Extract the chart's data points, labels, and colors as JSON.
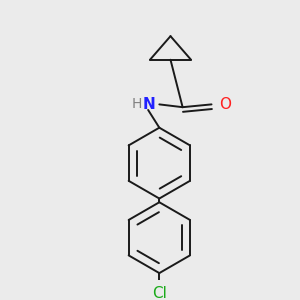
{
  "background_color": "#ebebeb",
  "bond_color": "#1a1a1a",
  "atom_colors": {
    "N": "#2020ff",
    "O": "#ff2020",
    "Cl": "#1aaa1a",
    "H": "#808080"
  },
  "lw": 1.4,
  "dbo": 0.018,
  "fig_size": [
    3.0,
    3.0
  ],
  "dpi": 100
}
